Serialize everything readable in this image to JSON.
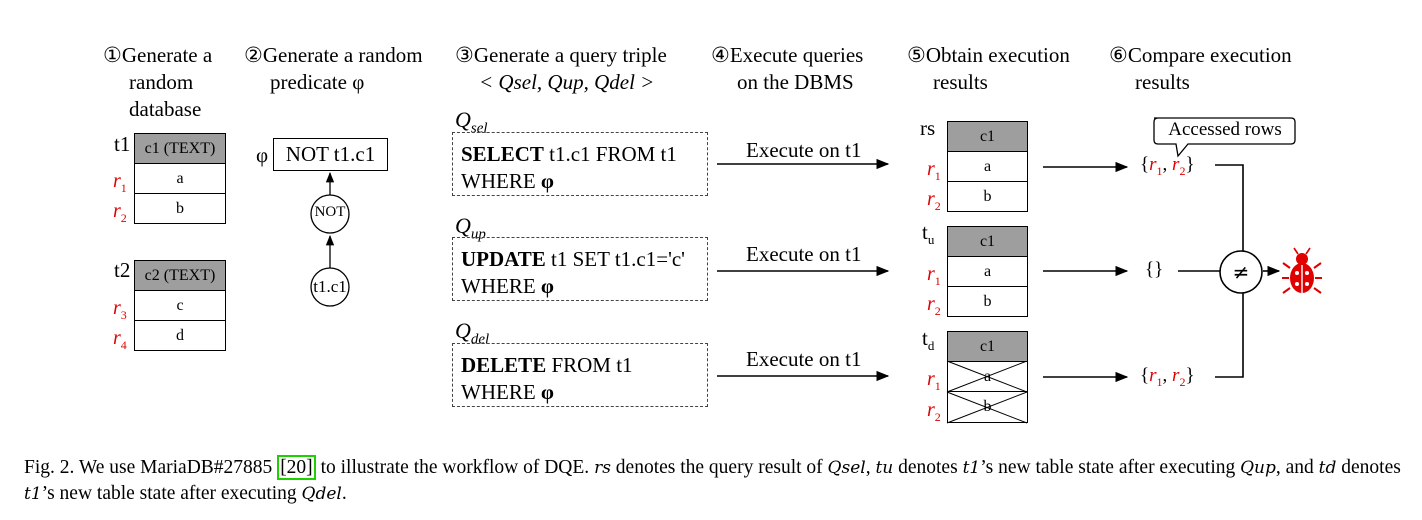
{
  "steps": [
    {
      "num": "①",
      "line1": "Generate a",
      "line2": "random",
      "line3": "database"
    },
    {
      "num": "②",
      "line1": "Generate a random",
      "line2": "predicate φ"
    },
    {
      "num": "③",
      "line1": "Generate a query triple",
      "line2": "< Qsel, Qup, Qdel >"
    },
    {
      "num": "④",
      "line1": "Execute queries",
      "line2": "on the DBMS"
    },
    {
      "num": "⑤",
      "line1": "Obtain execution",
      "line2": "results"
    },
    {
      "num": "⑥",
      "line1": "Compare execution",
      "line2": "results"
    }
  ],
  "database": {
    "t1": {
      "name": "t1",
      "header": "c1 (TEXT)",
      "rows": [
        {
          "label": "r",
          "sub": "1",
          "value": "a"
        },
        {
          "label": "r",
          "sub": "2",
          "value": "b"
        }
      ]
    },
    "t2": {
      "name": "t2",
      "header": "c2 (TEXT)",
      "rows": [
        {
          "label": "r",
          "sub": "3",
          "value": "c"
        },
        {
          "label": "r",
          "sub": "4",
          "value": "d"
        }
      ]
    }
  },
  "predicate": {
    "symbol": "φ",
    "expression": "NOT t1.c1",
    "node_not": "NOT",
    "node_col": "t1.c1"
  },
  "queries": {
    "sel": {
      "label": "Q",
      "sub": "sel",
      "kw": "SELECT",
      "rest1": " t1.c1 FROM t1",
      "line2": "WHERE ",
      "phi": "φ"
    },
    "up": {
      "label": "Q",
      "sub": "up",
      "kw": "UPDATE",
      "rest1": " t1 SET t1.c1='c'",
      "line2": "WHERE ",
      "phi": "φ"
    },
    "del": {
      "label": "Q",
      "sub": "del",
      "kw": "DELETE",
      "rest1": " FROM t1",
      "line2": "WHERE ",
      "phi": "φ"
    }
  },
  "execute_label": "Execute on t1",
  "results": [
    {
      "name": "rs",
      "sub": "",
      "header": "c1",
      "values": [
        "a",
        "b"
      ],
      "crossed": false,
      "output": "{r1, r2}"
    },
    {
      "name": "t",
      "sub": "u",
      "header": "c1",
      "values": [
        "a",
        "b"
      ],
      "crossed": false,
      "output": "{}"
    },
    {
      "name": "t",
      "sub": "d",
      "header": "c1",
      "values": [
        "a",
        "b"
      ],
      "crossed": true,
      "output": "{r1, r2}"
    }
  ],
  "callout": "Accessed rows",
  "compare_symbol": "≠",
  "icons": {
    "bug": "bug-icon"
  },
  "colors": {
    "row_label": "#e00000",
    "header_fill": "#9e9e9e",
    "bug": "#e00000",
    "citation_box": "#1fd000"
  },
  "caption": {
    "part1": "Fig. 2.  We use MariaDB#27885 ",
    "cite": "[20]",
    "part2": " to illustrate the workflow of DQE. ",
    "rs": "rs",
    "part3": " denotes the query result of ",
    "qsel": "Qsel",
    "part4": ", ",
    "tu": "tu",
    "part5": " denotes ",
    "t1a": "t1",
    "part6": "’s new table state after executing ",
    "qup": "Qup",
    "part7": ", and ",
    "td": "td",
    "part8": " denotes ",
    "t1b": "t1",
    "part9": "’s new table state after executing ",
    "qdel": "Qdel",
    "part10": "."
  }
}
